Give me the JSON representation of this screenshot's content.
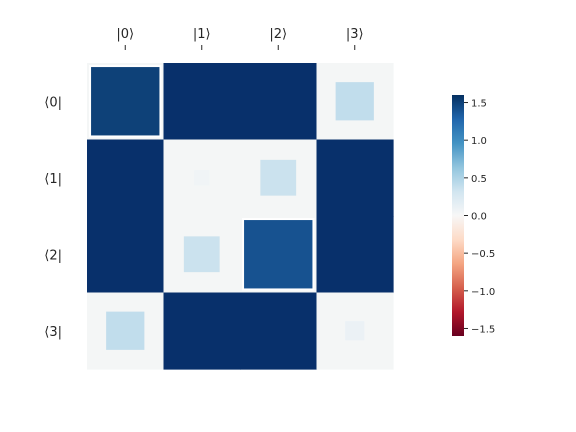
{
  "chart_data": {
    "type": "heatmap",
    "title": "",
    "x_labels": [
      "|0⟩",
      "|1⟩",
      "|2⟩",
      "|3⟩"
    ],
    "y_labels": [
      "⟨0|",
      "⟨1|",
      "⟨2|",
      "⟨3|"
    ],
    "matrix": [
      [
        1.5,
        5.0,
        5.0,
        0.4
      ],
      [
        5.0,
        0.06,
        0.35,
        5.0
      ],
      [
        5.0,
        0.35,
        1.4,
        5.0
      ],
      [
        0.4,
        5.0,
        5.0,
        0.1
      ]
    ],
    "cell_background": "#f4f6f6",
    "dark_cell_color": "#08306b",
    "highlighted_cells": [
      [
        0,
        0
      ],
      [
        2,
        2
      ]
    ],
    "colorbar": {
      "ticks": [
        1.5,
        1.0,
        0.5,
        0.0,
        -0.5,
        -1.0,
        -1.5
      ],
      "tick_labels": [
        "1.5",
        "1.0",
        "0.5",
        "0.0",
        "−0.5",
        "−1.0",
        "−1.5"
      ],
      "range": [
        -1.6,
        1.6
      ],
      "colormap": "RdBu"
    }
  }
}
